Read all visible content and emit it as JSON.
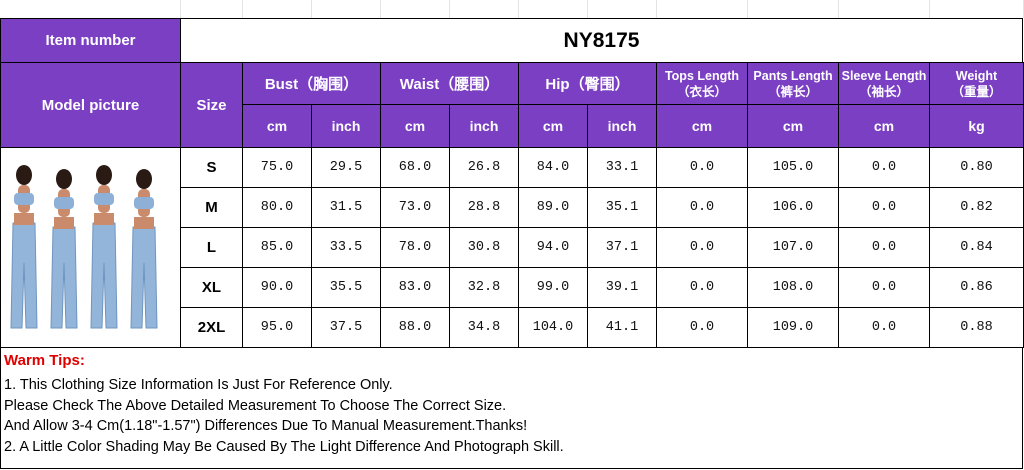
{
  "header": {
    "item_number_label": "Item number",
    "item_number": "NY8175",
    "model_picture_label": "Model picture",
    "size_label": "Size"
  },
  "groups": [
    {
      "label": "Bust",
      "sub": "（胸围）",
      "units": [
        "cm",
        "inch"
      ]
    },
    {
      "label": "Waist",
      "sub": "（腰围）",
      "units": [
        "cm",
        "inch"
      ]
    },
    {
      "label": "Hip",
      "sub": "（臀围）",
      "units": [
        "cm",
        "inch"
      ]
    },
    {
      "label": "Tops Length",
      "sub": "（衣长）",
      "units": [
        "cm"
      ]
    },
    {
      "label": "Pants Length",
      "sub": "（裤长）",
      "units": [
        "cm"
      ]
    },
    {
      "label": "Sleeve Length",
      "sub": "（袖长）",
      "units": [
        "cm"
      ]
    },
    {
      "label": "Weight",
      "sub": "（重量）",
      "units": [
        "kg"
      ]
    }
  ],
  "rows": [
    {
      "size": "S",
      "values": [
        "75.0",
        "29.5",
        "68.0",
        "26.8",
        "84.0",
        "33.1",
        "0.0",
        "105.0",
        "0.0",
        "0.80"
      ]
    },
    {
      "size": "M",
      "values": [
        "80.0",
        "31.5",
        "73.0",
        "28.8",
        "89.0",
        "35.1",
        "0.0",
        "106.0",
        "0.0",
        "0.82"
      ]
    },
    {
      "size": "L",
      "values": [
        "85.0",
        "33.5",
        "78.0",
        "30.8",
        "94.0",
        "37.1",
        "0.0",
        "107.0",
        "0.0",
        "0.84"
      ]
    },
    {
      "size": "XL",
      "values": [
        "90.0",
        "35.5",
        "83.0",
        "32.8",
        "99.0",
        "39.1",
        "0.0",
        "108.0",
        "0.0",
        "0.86"
      ]
    },
    {
      "size": "2XL",
      "values": [
        "95.0",
        "37.5",
        "88.0",
        "34.8",
        "104.0",
        "41.1",
        "0.0",
        "109.0",
        "0.0",
        "0.88"
      ]
    }
  ],
  "tips": {
    "title": "Warm Tips:",
    "lines": [
      "1. This Clothing Size Information Is Just For Reference Only.",
      "Please Check The Above Detailed Measurement To Choose The Correct Size.",
      "And Allow 3-4 Cm(1.18\"-1.57\") Differences Due To Manual Measurement.Thanks!",
      "2. A Little Color Shading May Be Caused By The Light Difference And Photograph Skill."
    ]
  }
}
